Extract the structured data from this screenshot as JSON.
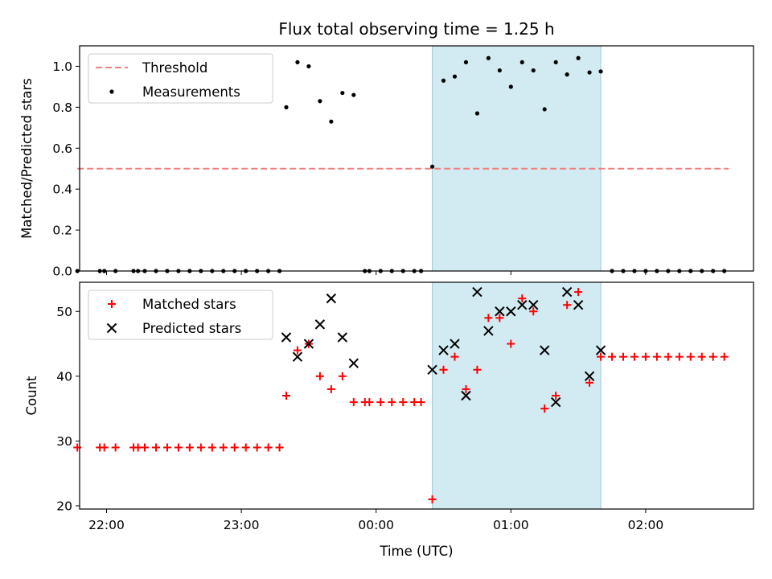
{
  "chart_data": [
    {
      "type": "scatter",
      "title": "Flux total observing time = 1.25 h",
      "xlabel": "",
      "ylabel": "Matched/Predicted stars",
      "xlim": [
        "21:48",
        "02:48"
      ],
      "ylim": [
        0,
        1.1
      ],
      "yticks": [
        0.0,
        0.2,
        0.4,
        0.6,
        0.8,
        1.0
      ],
      "ytick_labels": [
        "0.0",
        "0.2",
        "0.4",
        "0.6",
        "0.8",
        "1.0"
      ],
      "highlight_span": {
        "start": "00:25",
        "end": "01:40",
        "color": "#add8e6"
      },
      "legend": {
        "placement": "upper-left",
        "entries": [
          "Threshold",
          "Measurements"
        ]
      },
      "series": [
        {
          "name": "Threshold",
          "style": "dashed-line",
          "color": "#f08080",
          "x": [
            "21:47",
            "02:37"
          ],
          "y": [
            0.5,
            0.5
          ]
        },
        {
          "name": "Measurements",
          "style": "dot",
          "color": "#000000",
          "x": [
            "21:47",
            "21:57",
            "21:59",
            "22:04",
            "22:12",
            "22:14",
            "22:17",
            "22:22",
            "22:27",
            "22:32",
            "22:37",
            "22:42",
            "22:47",
            "22:52",
            "22:57",
            "23:02",
            "23:07",
            "23:12",
            "23:17",
            "23:20",
            "23:25",
            "23:30",
            "23:35",
            "23:40",
            "23:45",
            "23:50",
            "23:55",
            "23:57",
            "00:02",
            "00:07",
            "00:12",
            "00:17",
            "00:20",
            "00:25",
            "00:30",
            "00:35",
            "00:40",
            "00:45",
            "00:50",
            "00:55",
            "01:00",
            "01:05",
            "01:10",
            "01:15",
            "01:20",
            "01:25",
            "01:30",
            "01:35",
            "01:40",
            "01:45",
            "01:50",
            "01:55",
            "02:00",
            "02:05",
            "02:10",
            "02:15",
            "02:20",
            "02:25",
            "02:30",
            "02:35"
          ],
          "y": [
            0,
            0,
            0,
            0,
            0,
            0,
            0,
            0,
            0,
            0,
            0,
            0,
            0,
            0,
            0,
            0,
            0,
            0,
            0,
            0.8,
            1.02,
            1.0,
            0.83,
            0.73,
            0.87,
            0.86,
            0,
            0,
            0,
            0,
            0,
            0,
            0,
            0.51,
            0.93,
            0.95,
            1.02,
            0.77,
            1.04,
            0.98,
            0.9,
            1.02,
            0.98,
            0.79,
            1.02,
            0.96,
            1.04,
            0.97,
            0.975,
            0,
            0,
            0,
            0,
            0,
            0,
            0,
            0,
            0,
            0,
            0
          ]
        }
      ]
    },
    {
      "type": "scatter",
      "title": "",
      "xlabel": "Time (UTC)",
      "ylabel": "Count",
      "xlim": [
        "21:48",
        "02:48"
      ],
      "ylim": [
        19.5,
        54.5
      ],
      "yticks": [
        20,
        30,
        40,
        50
      ],
      "ytick_labels": [
        "20",
        "30",
        "40",
        "50"
      ],
      "xticks": [
        "22:00",
        "23:00",
        "00:00",
        "01:00",
        "02:00"
      ],
      "xtick_labels": [
        "22:00",
        "23:00",
        "00:00",
        "01:00",
        "02:00"
      ],
      "highlight_span": {
        "start": "00:25",
        "end": "01:40",
        "color": "#add8e6"
      },
      "legend": {
        "placement": "upper-left",
        "entries": [
          "Matched stars",
          "Predicted stars"
        ]
      },
      "series": [
        {
          "name": "Matched stars",
          "style": "plus",
          "color": "#ff0000",
          "x": [
            "21:47",
            "21:57",
            "21:59",
            "22:04",
            "22:12",
            "22:14",
            "22:17",
            "22:22",
            "22:27",
            "22:32",
            "22:37",
            "22:42",
            "22:47",
            "22:52",
            "22:57",
            "23:02",
            "23:07",
            "23:12",
            "23:17",
            "23:20",
            "23:25",
            "23:30",
            "23:35",
            "23:40",
            "23:45",
            "23:50",
            "23:55",
            "23:57",
            "00:02",
            "00:07",
            "00:12",
            "00:17",
            "00:20",
            "00:25",
            "00:30",
            "00:35",
            "00:40",
            "00:45",
            "00:50",
            "00:55",
            "01:00",
            "01:05",
            "01:10",
            "01:15",
            "01:20",
            "01:25",
            "01:30",
            "01:35",
            "01:40",
            "01:45",
            "01:50",
            "01:55",
            "02:00",
            "02:05",
            "02:10",
            "02:15",
            "02:20",
            "02:25",
            "02:30",
            "02:35"
          ],
          "y": [
            29,
            29,
            29,
            29,
            29,
            29,
            29,
            29,
            29,
            29,
            29,
            29,
            29,
            29,
            29,
            29,
            29,
            29,
            29,
            37,
            44,
            45,
            40,
            38,
            40,
            36,
            36,
            36,
            36,
            36,
            36,
            36,
            36,
            21,
            41,
            43,
            38,
            41,
            49,
            49,
            45,
            52,
            50,
            35,
            37,
            51,
            53,
            39,
            43,
            43,
            43,
            43,
            43,
            43,
            43,
            43,
            43,
            43,
            43,
            43
          ]
        },
        {
          "name": "Predicted stars",
          "style": "x",
          "color": "#000000",
          "x": [
            "23:20",
            "23:25",
            "23:30",
            "23:35",
            "23:40",
            "23:45",
            "23:50",
            "00:25",
            "00:30",
            "00:35",
            "00:40",
            "00:45",
            "00:50",
            "00:55",
            "01:00",
            "01:05",
            "01:10",
            "01:15",
            "01:20",
            "01:25",
            "01:30",
            "01:35",
            "01:40"
          ],
          "y": [
            46,
            43,
            45,
            48,
            52,
            46,
            42,
            41,
            44,
            45,
            37,
            53,
            47,
            50,
            50,
            51,
            51,
            44,
            36,
            53,
            51,
            40,
            44
          ]
        }
      ]
    }
  ]
}
